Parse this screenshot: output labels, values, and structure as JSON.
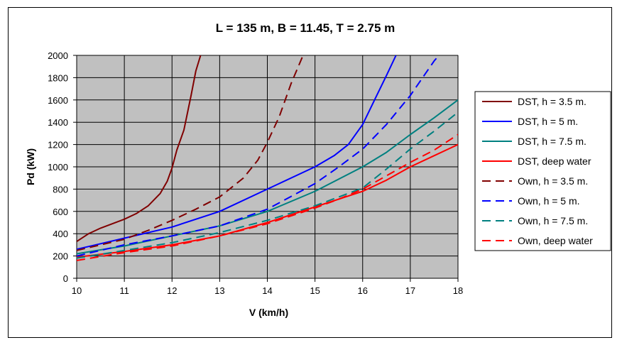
{
  "chart_data": {
    "type": "line",
    "title": "L = 135 m, B = 11.45, T = 2.75 m",
    "xlabel": "V (km/h)",
    "ylabel": "Pd (kW)",
    "xlim": [
      10,
      18
    ],
    "ylim": [
      0,
      2000
    ],
    "xticks": [
      "10",
      "11",
      "12",
      "13",
      "14",
      "15",
      "16",
      "17",
      "18"
    ],
    "yticks": [
      "0",
      "200",
      "400",
      "600",
      "800",
      "1000",
      "1200",
      "1400",
      "1600",
      "1800",
      "2000"
    ],
    "grid": true,
    "legend_position": "right",
    "plot_background": "#c0c0c0",
    "series": [
      {
        "name": "DST, h = 3.5 m.",
        "color": "#800000",
        "dash": false,
        "points": [
          [
            10,
            330
          ],
          [
            10.25,
            400
          ],
          [
            10.5,
            450
          ],
          [
            11,
            530
          ],
          [
            11.25,
            580
          ],
          [
            11.5,
            650
          ],
          [
            11.75,
            760
          ],
          [
            11.9,
            870
          ],
          [
            12,
            990
          ],
          [
            12.1,
            1150
          ],
          [
            12.25,
            1330
          ],
          [
            12.4,
            1640
          ],
          [
            12.5,
            1860
          ],
          [
            12.6,
            2000
          ]
        ]
      },
      {
        "name": "DST, h = 5 m.",
        "color": "#0000ff",
        "dash": false,
        "points": [
          [
            10,
            260
          ],
          [
            11,
            360
          ],
          [
            12,
            460
          ],
          [
            13,
            600
          ],
          [
            14,
            800
          ],
          [
            15,
            1000
          ],
          [
            15.4,
            1100
          ],
          [
            15.7,
            1200
          ],
          [
            16,
            1380
          ],
          [
            16.25,
            1600
          ],
          [
            16.5,
            1820
          ],
          [
            16.7,
            2000
          ]
        ]
      },
      {
        "name": "DST, h = 7.5 m.",
        "color": "#008080",
        "dash": false,
        "points": [
          [
            10,
            220
          ],
          [
            11,
            290
          ],
          [
            12,
            380
          ],
          [
            13,
            470
          ],
          [
            14,
            600
          ],
          [
            15,
            780
          ],
          [
            16,
            1000
          ],
          [
            16.5,
            1130
          ],
          [
            17,
            1290
          ],
          [
            17.5,
            1440
          ],
          [
            18,
            1600
          ]
        ]
      },
      {
        "name": "DST, deep water",
        "color": "#ff0000",
        "dash": false,
        "points": [
          [
            10,
            190
          ],
          [
            11,
            240
          ],
          [
            12,
            300
          ],
          [
            13,
            380
          ],
          [
            14,
            500
          ],
          [
            15,
            640
          ],
          [
            16,
            780
          ],
          [
            16.5,
            880
          ],
          [
            17,
            1000
          ],
          [
            17.5,
            1100
          ],
          [
            18,
            1200
          ]
        ]
      },
      {
        "name": "Own, h = 3.5 m.",
        "color": "#800000",
        "dash": true,
        "points": [
          [
            10,
            250
          ],
          [
            11,
            350
          ],
          [
            11.5,
            430
          ],
          [
            12,
            520
          ],
          [
            12.5,
            620
          ],
          [
            13,
            730
          ],
          [
            13.5,
            900
          ],
          [
            13.8,
            1060
          ],
          [
            14,
            1220
          ],
          [
            14.25,
            1450
          ],
          [
            14.5,
            1750
          ],
          [
            14.75,
            2000
          ]
        ]
      },
      {
        "name": "Own, h = 5 m.",
        "color": "#0000ff",
        "dash": true,
        "points": [
          [
            10,
            200
          ],
          [
            11,
            300
          ],
          [
            12,
            380
          ],
          [
            13,
            470
          ],
          [
            14,
            620
          ],
          [
            15,
            850
          ],
          [
            15.5,
            1000
          ],
          [
            16,
            1160
          ],
          [
            16.5,
            1380
          ],
          [
            17,
            1640
          ],
          [
            17.5,
            1950
          ],
          [
            17.6,
            2000
          ]
        ]
      },
      {
        "name": "Own, h = 7.5 m.",
        "color": "#008080",
        "dash": true,
        "points": [
          [
            10,
            180
          ],
          [
            11,
            250
          ],
          [
            12,
            320
          ],
          [
            13,
            410
          ],
          [
            14,
            520
          ],
          [
            15,
            650
          ],
          [
            15.5,
            730
          ],
          [
            16,
            810
          ],
          [
            16.5,
            980
          ],
          [
            17,
            1160
          ],
          [
            17.5,
            1320
          ],
          [
            18,
            1490
          ]
        ]
      },
      {
        "name": "Own, deep water",
        "color": "#ff0000",
        "dash": true,
        "points": [
          [
            10,
            160
          ],
          [
            11,
            230
          ],
          [
            12,
            290
          ],
          [
            13,
            380
          ],
          [
            14,
            490
          ],
          [
            15,
            630
          ],
          [
            15.5,
            710
          ],
          [
            16,
            800
          ],
          [
            16.5,
            920
          ],
          [
            17,
            1040
          ],
          [
            17.5,
            1150
          ],
          [
            18,
            1290
          ]
        ]
      }
    ]
  }
}
